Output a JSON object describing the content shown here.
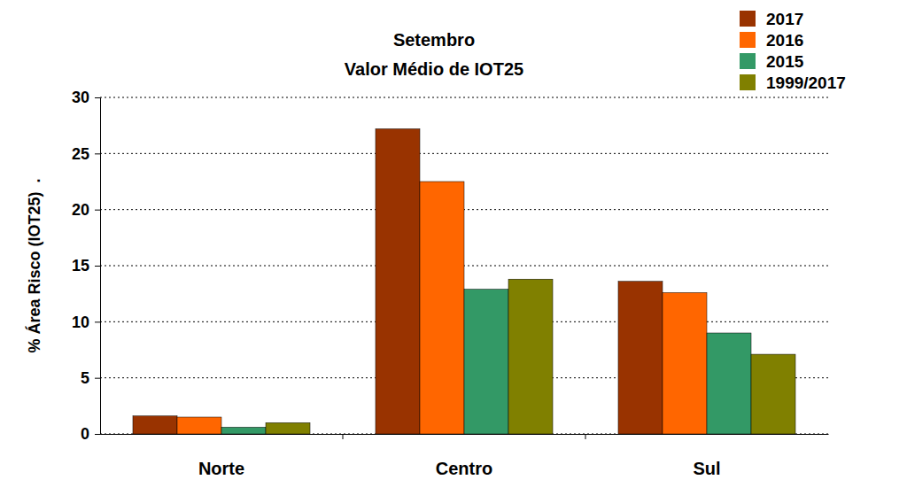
{
  "chart_data": {
    "type": "bar",
    "title": "Setembro",
    "subtitle": "Valor Médio de IOT25",
    "ylabel": "% Área Risco (IOT25)  .",
    "categories": [
      "Norte",
      "Centro",
      "Sul"
    ],
    "series": [
      {
        "name": "2017",
        "color": "#993300",
        "values": [
          1.6,
          27.2,
          13.6
        ]
      },
      {
        "name": "2016",
        "color": "#ff6600",
        "values": [
          1.5,
          22.5,
          12.6
        ]
      },
      {
        "name": "2015",
        "color": "#339966",
        "values": [
          0.6,
          12.9,
          9.0
        ]
      },
      {
        "name": "1999/2017",
        "color": "#808000",
        "values": [
          1.0,
          13.8,
          7.1
        ]
      }
    ],
    "ylim": [
      0,
      30
    ],
    "yticks": [
      0,
      5,
      10,
      15,
      20,
      25,
      30
    ],
    "grid": true,
    "legend": "top-right"
  }
}
